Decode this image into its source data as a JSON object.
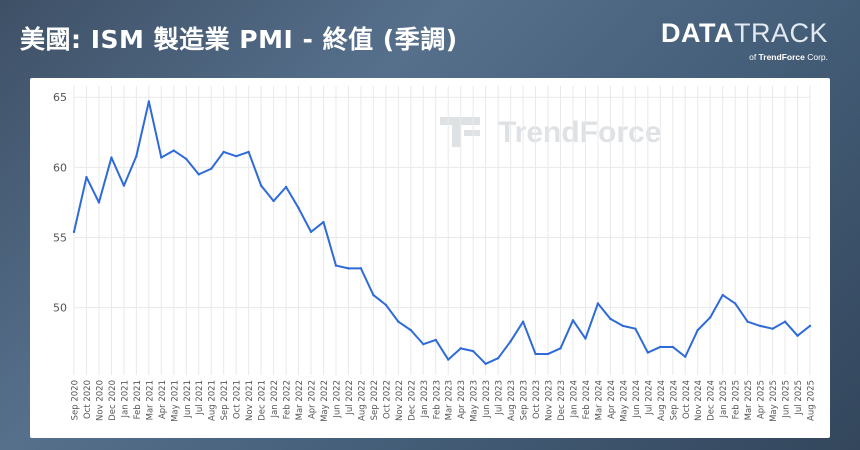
{
  "header": {
    "title": "美國: ISM 製造業 PMI - 終值 (季調)"
  },
  "logo": {
    "brand_bold": "DATA",
    "brand_light": "TRACK",
    "sub_prefix": "of ",
    "sub_brand": "TrendForce",
    "sub_suffix": " Corp."
  },
  "watermark": {
    "text": "TrendForce"
  },
  "colors": {
    "line": "#2f6bd8",
    "grid": "#e9e9e9",
    "axis_text": "#555555",
    "panel": "#ffffff"
  },
  "chart_data": {
    "type": "line",
    "title": "美國: ISM 製造業 PMI - 終值 (季調)",
    "xlabel": "",
    "ylabel": "",
    "ylim": [
      45.2,
      65.8
    ],
    "yticks": [
      50,
      55,
      60,
      65
    ],
    "grid": "vertical and horizontal",
    "legend": "none",
    "categories": [
      "Sep 2020",
      "Oct 2020",
      "Nov 2020",
      "Dec 2020",
      "Jan 2021",
      "Feb 2021",
      "Mar 2021",
      "Apr 2021",
      "May 2021",
      "Jun 2021",
      "Jul 2021",
      "Aug 2021",
      "Sep 2021",
      "Oct 2021",
      "Nov 2021",
      "Dec 2021",
      "Jan 2022",
      "Feb 2022",
      "Mar 2022",
      "Apr 2022",
      "May 2022",
      "Jun 2022",
      "Jul 2022",
      "Aug 2022",
      "Sep 2022",
      "Oct 2022",
      "Nov 2022",
      "Dec 2022",
      "Jan 2023",
      "Feb 2023",
      "Mar 2023",
      "Apr 2023",
      "May 2023",
      "Jun 2023",
      "Jul 2023",
      "Aug 2023",
      "Sep 2023",
      "Oct 2023",
      "Nov 2023",
      "Dec 2023",
      "Jan 2024",
      "Feb 2024",
      "Mar 2024",
      "Apr 2024",
      "May 2024",
      "Jun 2024",
      "Jul 2024",
      "Aug 2024",
      "Sep 2024",
      "Oct 2024",
      "Nov 2024",
      "Dec 2024",
      "Jan 2025",
      "Feb 2025",
      "Mar 2025",
      "Apr 2025",
      "May 2025",
      "Jun 2025",
      "Jul 2025",
      "Aug 2025"
    ],
    "series": [
      {
        "values": [
          55.4,
          59.3,
          57.5,
          60.7,
          58.7,
          60.8,
          64.7,
          60.7,
          61.2,
          60.6,
          59.5,
          59.9,
          61.1,
          60.8,
          61.1,
          58.7,
          57.6,
          58.6,
          57.1,
          55.4,
          56.1,
          53.0,
          52.8,
          52.8,
          50.9,
          50.2,
          49.0,
          48.4,
          47.4,
          47.7,
          46.3,
          47.1,
          46.9,
          46.0,
          46.4,
          47.6,
          49.0,
          46.7,
          46.7,
          47.1,
          49.1,
          47.8,
          50.3,
          49.2,
          48.7,
          48.5,
          46.8,
          47.2,
          47.2,
          46.5,
          48.4,
          49.3,
          50.9,
          50.3,
          49.0,
          48.7,
          48.5,
          49.0,
          48.0,
          48.7
        ]
      }
    ]
  }
}
